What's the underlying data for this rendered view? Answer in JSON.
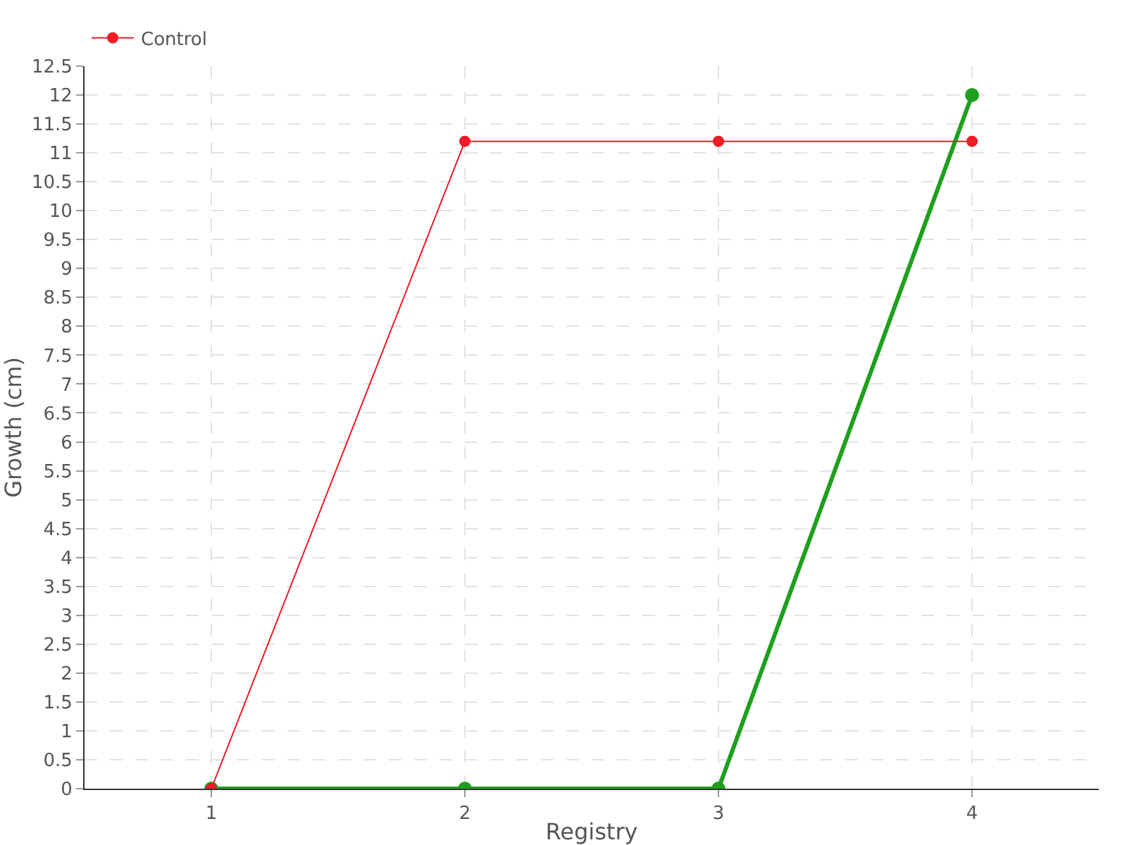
{
  "chart_data": {
    "type": "line",
    "xlabel": "Registry",
    "ylabel": "Growth (cm)",
    "x": [
      1,
      2,
      3,
      4
    ],
    "series": [
      {
        "color": "#1ea01e",
        "values": [
          0,
          0,
          0,
          12
        ]
      },
      {
        "name": "Control",
        "color": "#ee1c25",
        "values": [
          0,
          11.2,
          11.2,
          11.2
        ]
      }
    ],
    "xlim": [
      0.5,
      4.5
    ],
    "xticks": [
      1,
      2,
      3,
      4
    ],
    "ylim": [
      0,
      12.5
    ],
    "yticks": [
      0,
      0.5,
      1,
      1.5,
      2,
      2.5,
      3,
      3.5,
      4,
      4.5,
      5,
      5.5,
      6,
      6.5,
      7,
      7.5,
      8,
      8.5,
      9,
      9.5,
      10,
      10.5,
      11,
      11.5,
      12,
      12.5
    ],
    "grid": true,
    "legend": "top left",
    "marker": "circle",
    "line_style": "solid"
  }
}
